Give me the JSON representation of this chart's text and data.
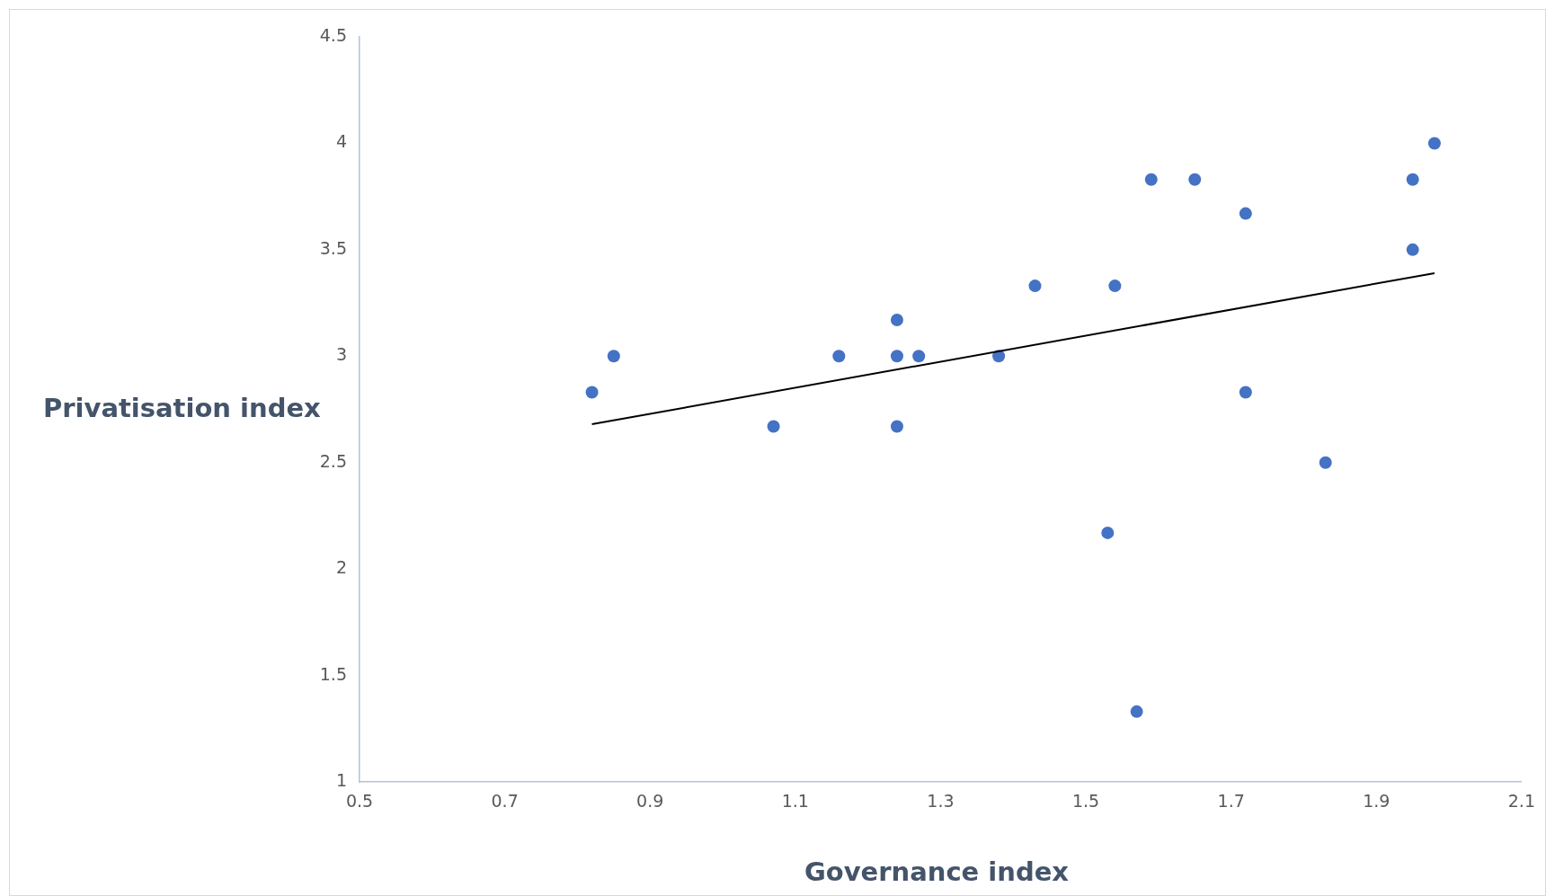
{
  "chart_data": {
    "type": "scatter",
    "xlabel": "Governance index",
    "ylabel": "Privatisation index",
    "xlim": [
      0.5,
      2.1
    ],
    "xticks": [
      0.5,
      0.7,
      0.9,
      1.1,
      1.3,
      1.5,
      1.7,
      1.9,
      2.1
    ],
    "ylim": [
      1,
      4.5
    ],
    "yticks": [
      1,
      1.5,
      2,
      2.5,
      3,
      3.5,
      4,
      4.5
    ],
    "grid": false,
    "legend": false,
    "marker": "circle",
    "series": [
      {
        "color": "#4472c4",
        "x": [
          0.82,
          0.85,
          1.07,
          1.16,
          1.24,
          1.24,
          1.24,
          1.27,
          1.38,
          1.43,
          1.53,
          1.54,
          1.57,
          1.59,
          1.65,
          1.72,
          1.72,
          1.83,
          1.95,
          1.95,
          1.98
        ],
        "values": [
          2.83,
          3.0,
          2.67,
          3.0,
          3.17,
          3.0,
          2.67,
          3.0,
          3.0,
          3.33,
          2.17,
          3.33,
          1.33,
          3.83,
          3.83,
          3.67,
          2.83,
          2.5,
          3.83,
          3.5,
          4.0
        ]
      },
      {
        "type": "line",
        "color": "#000000",
        "marker": "none",
        "line_style": "solid",
        "x": [
          0.82,
          1.98
        ],
        "values": [
          2.68,
          3.39
        ]
      }
    ]
  }
}
